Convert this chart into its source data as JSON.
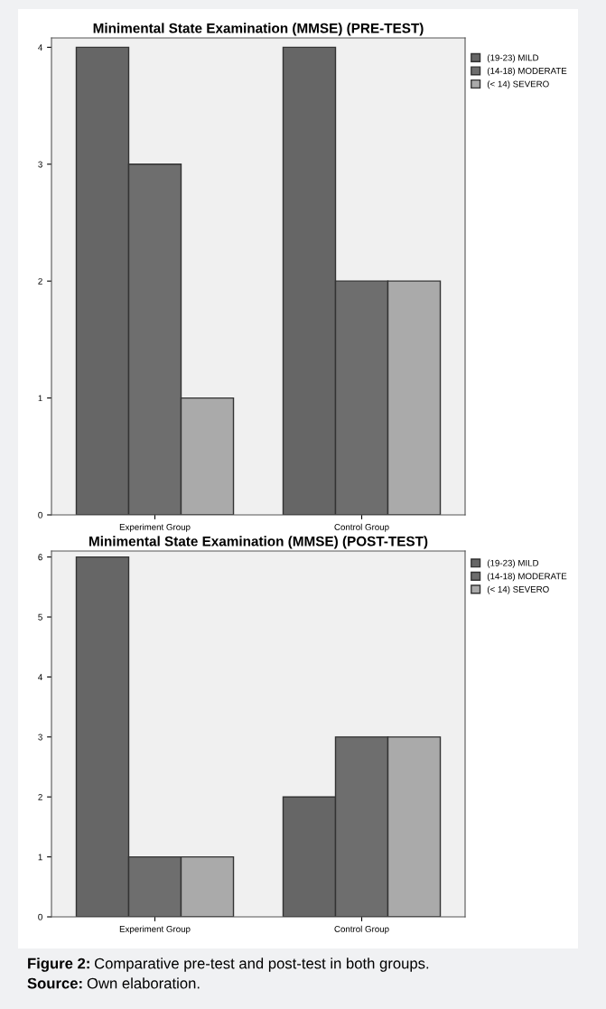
{
  "chart_data": [
    {
      "type": "bar",
      "title": "Minimental State Examination (MMSE) (PRE-TEST)",
      "categories": [
        "Experiment Group",
        "Control Group"
      ],
      "series": [
        {
          "name": "(19-23) MILD",
          "color": "#666666",
          "values": [
            4,
            4
          ]
        },
        {
          "name": "(14-18) MODERATE",
          "color": "#6e6e6e",
          "values": [
            3,
            2
          ]
        },
        {
          "name": "(< 14) SEVERO",
          "color": "#aaaaaa",
          "values": [
            1,
            2
          ]
        }
      ],
      "ylim": [
        0,
        4.08
      ],
      "yticks": [
        0,
        1,
        2,
        3,
        4
      ],
      "legend": "right",
      "grid": false
    },
    {
      "type": "bar",
      "title": "Minimental State Examination (MMSE) (POST-TEST)",
      "categories": [
        "Experiment Group",
        "Control Group"
      ],
      "series": [
        {
          "name": "(19-23) MILD",
          "color": "#666666",
          "values": [
            6,
            2
          ]
        },
        {
          "name": "(14-18) MODERATE",
          "color": "#6e6e6e",
          "values": [
            1,
            3
          ]
        },
        {
          "name": "(< 14) SEVERO",
          "color": "#aaaaaa",
          "values": [
            1,
            3
          ]
        }
      ],
      "ylim": [
        0,
        6.1
      ],
      "yticks": [
        0,
        1,
        2,
        3,
        4,
        5,
        6
      ],
      "legend": "right",
      "grid": false,
      "annotations": [
        "Figure 2: Comparative pre-test and post-test in both groups.",
        "Source: Own elaboration."
      ]
    }
  ]
}
